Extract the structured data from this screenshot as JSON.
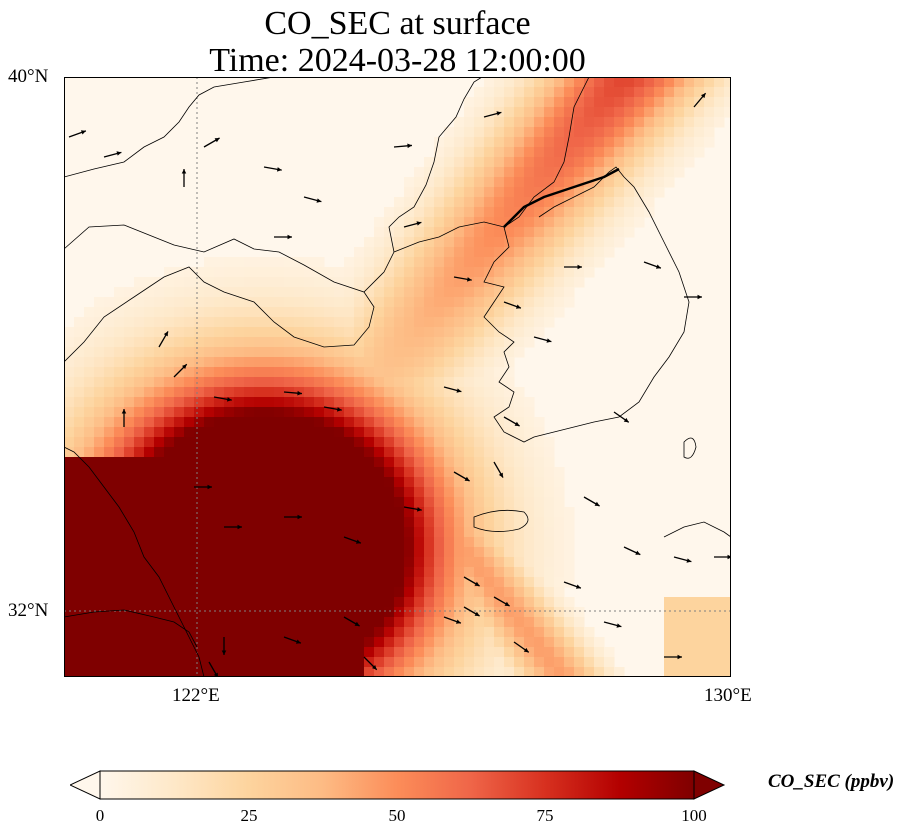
{
  "title": {
    "line1": "CO_SEC at surface",
    "line2": "Time: 2024-03-28 12:00:00"
  },
  "axes": {
    "lat_labels": [
      "40°N",
      "32°N"
    ],
    "lon_labels": [
      "122°E",
      "130°E"
    ],
    "lon_range": [
      120,
      130
    ],
    "lat_range": [
      31,
      40
    ]
  },
  "colorbar": {
    "title": "CO_SEC (ppbv)",
    "ticks": [
      "0",
      "25",
      "50",
      "75",
      "100"
    ],
    "range": [
      0,
      100
    ],
    "colormap": [
      "#fff7ec",
      "#fee8c8",
      "#fdd49e",
      "#fdbb84",
      "#fc8d59",
      "#ef6548",
      "#d7301f",
      "#b30000",
      "#7f0000"
    ],
    "extend": "max"
  },
  "field_description_values": {
    "plume_core_ppbv": 100,
    "background_ppbv": 3
  },
  "colors": {
    "coastline": "#000000",
    "gridline": "#808080",
    "wind_arrow": "#000000"
  }
}
